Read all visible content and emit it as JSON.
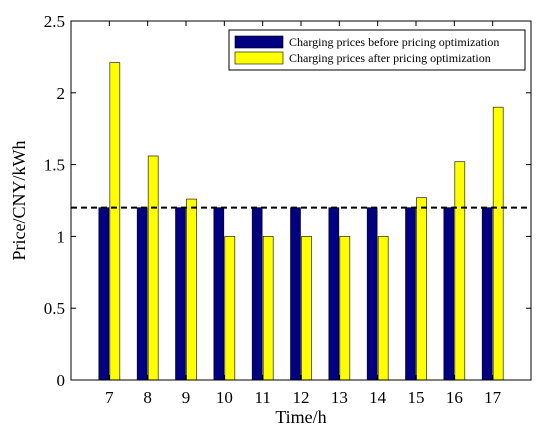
{
  "chart_data": {
    "type": "bar",
    "title": "",
    "xlabel": "Time/h",
    "ylabel": "Price/CNY/kWh",
    "categories": [
      "7",
      "8",
      "9",
      "10",
      "11",
      "12",
      "13",
      "14",
      "15",
      "16",
      "17"
    ],
    "ylim": [
      0,
      2.5
    ],
    "yticks": [
      "0",
      "0.5",
      "1",
      "1.5",
      "2",
      "2.5"
    ],
    "grid": false,
    "legend_position": "top-right",
    "reference_line": {
      "value": 1.2,
      "style": "dashed",
      "color": "#000000"
    },
    "series": [
      {
        "name": "Charging prices before pricing optimization",
        "color": "#000080",
        "values": [
          1.2,
          1.2,
          1.2,
          1.2,
          1.2,
          1.2,
          1.2,
          1.2,
          1.2,
          1.2,
          1.2
        ]
      },
      {
        "name": "Charging prices after pricing optimization",
        "color": "#ffff00",
        "values": [
          2.21,
          1.56,
          1.26,
          1.0,
          1.0,
          1.0,
          1.0,
          1.0,
          1.27,
          1.52,
          1.9
        ]
      }
    ]
  }
}
